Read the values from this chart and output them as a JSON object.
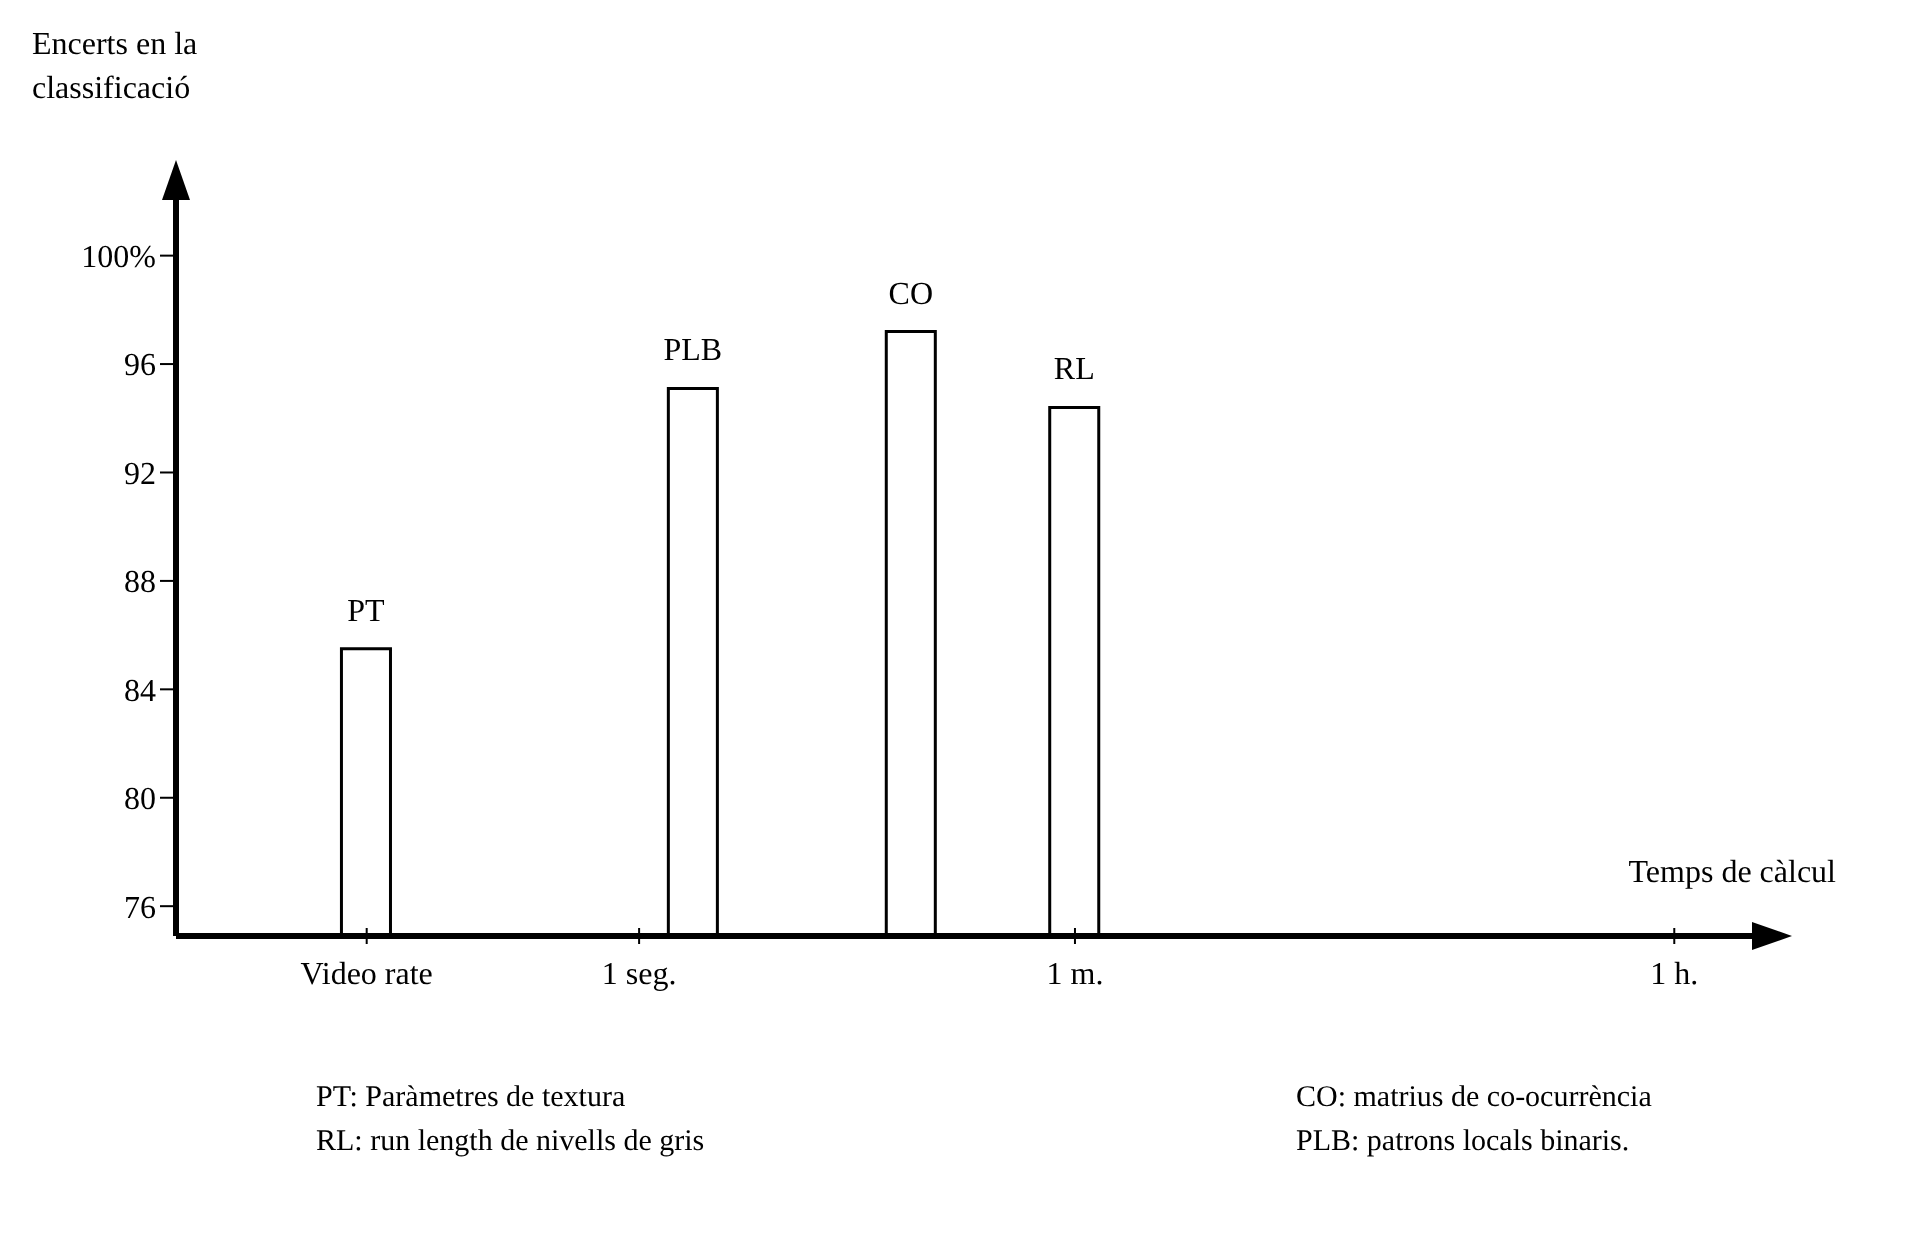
{
  "chart_data": {
    "type": "bar",
    "ylabel": "Encerts en la classificació",
    "xlabel": "Temps de càlcul",
    "categories": [
      null,
      null,
      null,
      "Video rate",
      null,
      null,
      null,
      null,
      "1 seg.",
      null,
      null,
      null,
      null,
      null,
      null,
      null,
      "1 m.",
      null,
      null,
      null,
      null,
      null,
      null,
      null,
      null,
      null,
      null,
      "1 h.",
      null
    ],
    "stacked": true,
    "series": [
      {
        "name": "PT",
        "color": "#ffffff",
        "values": [
          null,
          null,
          null,
          85.5,
          null,
          null,
          null,
          null,
          null,
          null,
          null,
          null,
          null,
          null,
          null,
          null,
          null,
          null,
          null,
          null,
          null,
          null,
          null,
          null,
          null,
          null,
          null,
          null,
          null
        ]
      },
      {
        "name": "PLB",
        "color": "#ffffff",
        "values": [
          null,
          null,
          null,
          null,
          null,
          null,
          null,
          null,
          null,
          95.1,
          null,
          null,
          null,
          null,
          null,
          null,
          null,
          null,
          null,
          null,
          null,
          null,
          null,
          null,
          null,
          null,
          null,
          null,
          null
        ]
      },
      {
        "name": "CO",
        "color": "#ffffff",
        "values": [
          null,
          null,
          null,
          null,
          null,
          null,
          null,
          null,
          null,
          null,
          null,
          null,
          null,
          97.2,
          null,
          null,
          null,
          null,
          null,
          null,
          null,
          null,
          null,
          null,
          null,
          null,
          null,
          null,
          null
        ]
      },
      {
        "name": "RL",
        "color": "#ffffff",
        "values": [
          null,
          null,
          null,
          null,
          null,
          null,
          null,
          null,
          null,
          null,
          null,
          null,
          null,
          null,
          null,
          null,
          94.4,
          null,
          null,
          null,
          null,
          null,
          null,
          null,
          null,
          null,
          null,
          null,
          null
        ]
      }
    ],
    "ylim": [
      74.9,
      102.2
    ],
    "yticks": [
      76,
      80,
      84,
      88,
      92,
      96,
      {
        "value": 100,
        "label": "100%"
      }
    ],
    "annotations": [
      "PT: Paràmetres de textura",
      "RL: run length de nivells de gris",
      "CO: matrius de co-ocurrència",
      "PLB: patrons locals binaris."
    ]
  }
}
